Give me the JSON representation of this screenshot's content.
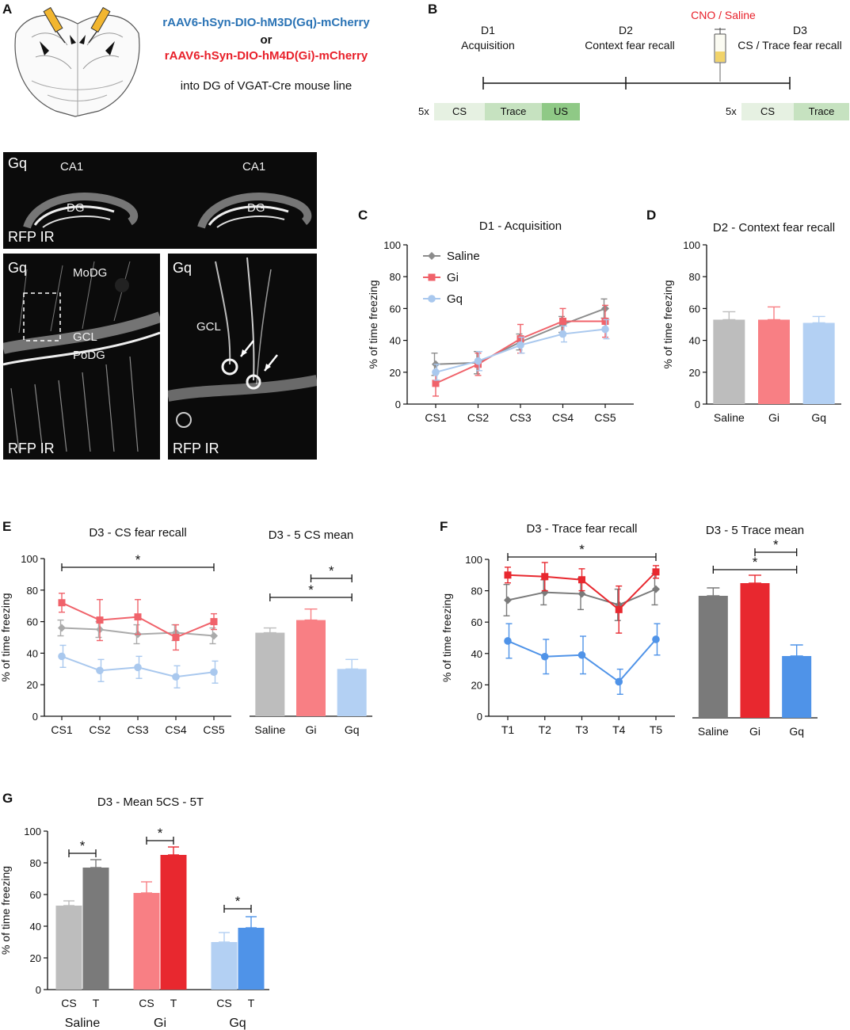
{
  "panel_labels": {
    "A": "A",
    "B": "B",
    "C": "C",
    "D": "D",
    "E": "E",
    "F": "F",
    "G": "G"
  },
  "panelA": {
    "line1": "rAAV6-hSyn-DIO-hM3D(Gq)-mCherry",
    "or": "or",
    "line2": "rAAV6-hSyn-DIO-hM4D(Gi)-mCherry",
    "line3": "into DG of VGAT-Cre mouse line",
    "colors": {
      "gq": "#2a73b5",
      "gi": "#e8202a"
    }
  },
  "panelB": {
    "d1": "D1",
    "d1_name": "Acquisition",
    "d2": "D2",
    "d2_name": "Context fear recall",
    "d3": "D3",
    "d3_name": "CS / Trace fear recall",
    "cno": "CNO / Saline",
    "rep1": "5x",
    "rep2": "5x",
    "cs": "CS",
    "trace": "Trace",
    "us": "US"
  },
  "micro": {
    "top_title": "Gq",
    "top_ca1_left": "CA1",
    "top_ca1_right": "CA1",
    "top_dg_left": "DG",
    "top_dg_right": "DG",
    "top_stain": "RFP IR",
    "bl_title": "Gq",
    "bl_modg": "MoDG",
    "bl_gcl": "GCL",
    "bl_podg": "PoDG",
    "bl_stain": "RFP IR",
    "br_title": "Gq",
    "br_gcl": "GCL",
    "br_stain": "RFP IR"
  },
  "colors": {
    "saline": "#8c8c8c",
    "gi": "#f0626a",
    "gq": "#a9c8ee",
    "saline_bar": "#bdbdbd",
    "gi_bar": "#f87f84",
    "gq_bar": "#b3d0f3",
    "saline_dark": "#7a7a7a",
    "gi_dark": "#e8282f",
    "gq_dark": "#4f93e8",
    "cs_light": "#e6f1e2",
    "cs_mid": "#c6e2c0",
    "us": "#8fc986"
  },
  "ylabel": "% of time freezing",
  "chart_data": [
    {
      "id": "C",
      "type": "line",
      "title": "D1 - Acquisition",
      "categories": [
        "CS1",
        "CS2",
        "CS3",
        "CS4",
        "CS5"
      ],
      "ylim": [
        0,
        100
      ],
      "yticks": [
        "0",
        "20",
        "40",
        "60",
        "80",
        "100"
      ],
      "ylabel": "% of time freezing",
      "legend": [
        "Saline",
        "Gi",
        "Gq"
      ],
      "series": [
        {
          "name": "Saline",
          "values": [
            25,
            26,
            39,
            50,
            60
          ],
          "err": [
            7,
            7,
            5,
            5,
            6
          ]
        },
        {
          "name": "Gi",
          "values": [
            13,
            25,
            41,
            52,
            52
          ],
          "err": [
            8,
            7,
            9,
            8,
            10
          ]
        },
        {
          "name": "Gq",
          "values": [
            20,
            27,
            37,
            44,
            47
          ],
          "err": [
            5,
            6,
            5,
            5,
            6
          ]
        }
      ]
    },
    {
      "id": "D",
      "type": "bar",
      "title": "D2 - Context fear recall",
      "categories": [
        "Saline",
        "Gi",
        "Gq"
      ],
      "values": [
        53,
        53,
        51
      ],
      "err": [
        5,
        8,
        4
      ],
      "ylim": [
        0,
        100
      ],
      "yticks": [
        "0",
        "20",
        "40",
        "60",
        "80",
        "100"
      ],
      "ylabel": "% of time freezing"
    },
    {
      "id": "E-line",
      "type": "line",
      "title": "D3 - CS fear recall",
      "categories": [
        "CS1",
        "CS2",
        "CS3",
        "CS4",
        "CS5"
      ],
      "ylim": [
        0,
        100
      ],
      "yticks": [
        "0",
        "20",
        "40",
        "60",
        "80",
        "100"
      ],
      "ylabel": "% of time freezing",
      "sig": "*",
      "series": [
        {
          "name": "Saline",
          "values": [
            56,
            55,
            52,
            53,
            51
          ],
          "err": [
            5,
            5,
            6,
            5,
            5
          ]
        },
        {
          "name": "Gi",
          "values": [
            72,
            61,
            63,
            50,
            60
          ],
          "err": [
            6,
            13,
            11,
            8,
            5
          ]
        },
        {
          "name": "Gq",
          "values": [
            38,
            29,
            31,
            25,
            28
          ],
          "err": [
            7,
            7,
            7,
            7,
            7
          ]
        }
      ]
    },
    {
      "id": "E-bar",
      "type": "bar",
      "title": "D3 - 5 CS mean",
      "categories": [
        "Saline",
        "Gi",
        "Gq"
      ],
      "values": [
        53,
        61,
        30
      ],
      "err": [
        3,
        7,
        6
      ],
      "ylim": [
        0,
        100
      ],
      "sig1": "*",
      "sig2": "*"
    },
    {
      "id": "F-line",
      "type": "line",
      "title": "D3 - Trace fear recall",
      "categories": [
        "T1",
        "T2",
        "T3",
        "T4",
        "T5"
      ],
      "ylim": [
        0,
        100
      ],
      "yticks": [
        "0",
        "20",
        "40",
        "60",
        "80",
        "100"
      ],
      "ylabel": "% of time freezing",
      "sig": "*",
      "series": [
        {
          "name": "Saline",
          "values": [
            74,
            79,
            78,
            71,
            81
          ],
          "err": [
            10,
            8,
            10,
            10,
            10
          ]
        },
        {
          "name": "Gi",
          "values": [
            90,
            89,
            87,
            68,
            92
          ],
          "err": [
            5,
            9,
            7,
            15,
            4
          ]
        },
        {
          "name": "Gq",
          "values": [
            48,
            38,
            39,
            22,
            49
          ],
          "err": [
            11,
            11,
            12,
            8,
            10
          ]
        }
      ]
    },
    {
      "id": "F-bar",
      "type": "bar",
      "title": "D3 - 5 Trace mean",
      "categories": [
        "Saline",
        "Gi",
        "Gq"
      ],
      "values": [
        77,
        85,
        39
      ],
      "err": [
        5,
        5,
        7
      ],
      "ylim": [
        0,
        100
      ],
      "sig1": "*",
      "sig2": "*"
    },
    {
      "id": "G",
      "type": "bar",
      "title": "D3 - Mean 5CS - 5T",
      "groups": [
        "Saline",
        "Gi",
        "Gq"
      ],
      "subcategories": [
        "CS",
        "T"
      ],
      "values": [
        [
          53,
          77
        ],
        [
          61,
          85
        ],
        [
          30,
          39
        ]
      ],
      "err": [
        [
          3,
          5
        ],
        [
          7,
          5
        ],
        [
          6,
          7
        ]
      ],
      "ylim": [
        0,
        100
      ],
      "yticks": [
        "0",
        "20",
        "40",
        "60",
        "80",
        "100"
      ],
      "ylabel": "% of time freezing",
      "sig": "*"
    }
  ]
}
